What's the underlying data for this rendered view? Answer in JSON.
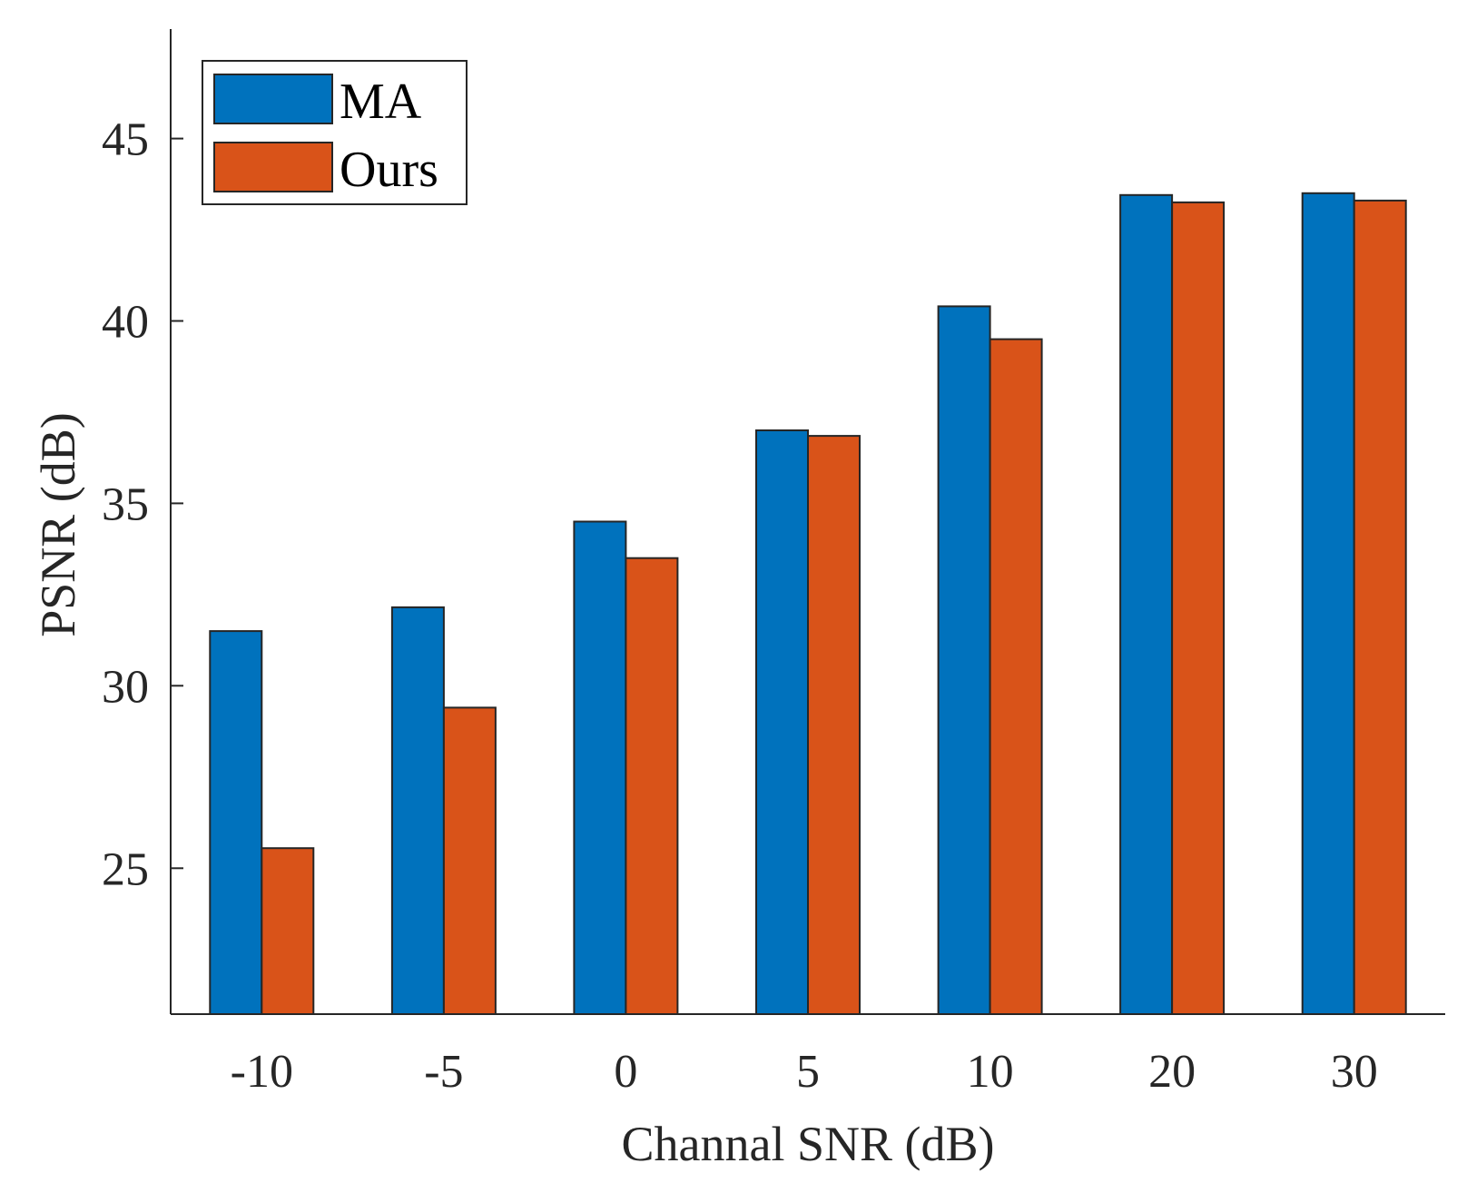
{
  "chart_data": {
    "type": "bar",
    "title": "",
    "xlabel": "Channal SNR (dB)",
    "ylabel": "PSNR (dB)",
    "categories": [
      "-10",
      "-5",
      "0",
      "5",
      "10",
      "20",
      "30"
    ],
    "series": [
      {
        "name": "MA",
        "color": "#0072BD",
        "values": [
          31.5,
          32.15,
          34.5,
          37.0,
          40.4,
          43.45,
          43.5
        ]
      },
      {
        "name": "Ours",
        "color": "#D95319",
        "values": [
          25.55,
          29.4,
          33.5,
          36.85,
          39.5,
          43.25,
          43.3
        ]
      }
    ],
    "ylim": [
      21,
      48
    ],
    "yticks": [
      25,
      30,
      35,
      40,
      45
    ],
    "grid": false,
    "legend_position": "top-left"
  }
}
